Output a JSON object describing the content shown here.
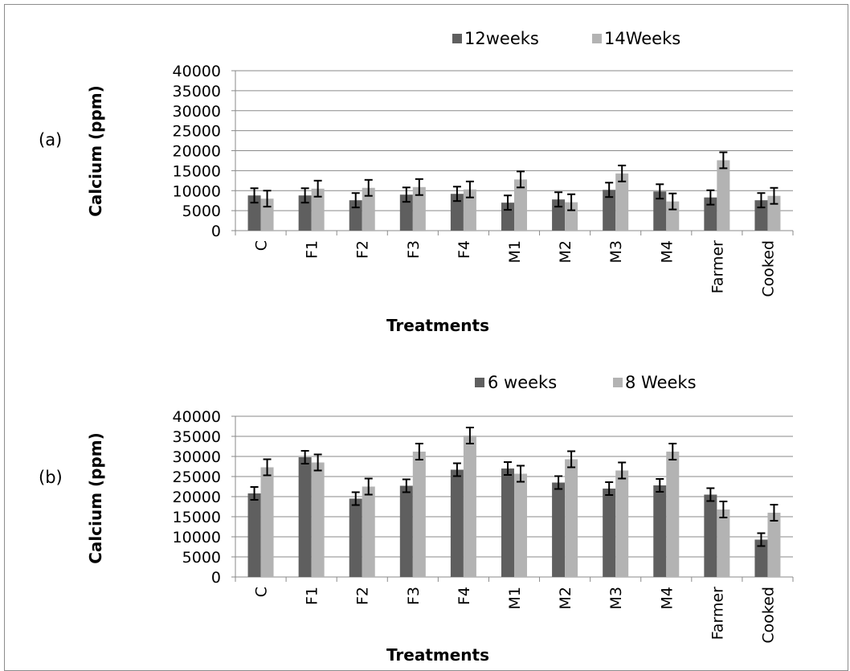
{
  "chart_data": [
    {
      "type": "bar",
      "panel_label": "(a)",
      "categories": [
        "C",
        "F1",
        "F2",
        "F3",
        "F4",
        "M1",
        "M2",
        "M3",
        "M4",
        "Farmer",
        "Cooked"
      ],
      "series": [
        {
          "name": "12weeks",
          "color": "#5f5f5f",
          "values": [
            8800,
            8800,
            7600,
            9000,
            9200,
            7000,
            7800,
            10200,
            9800,
            8300,
            7600
          ],
          "errors": [
            1800,
            1800,
            1800,
            1800,
            1800,
            1800,
            1800,
            1800,
            1800,
            1800,
            1800
          ]
        },
        {
          "name": "14Weeks",
          "color": "#b3b3b3",
          "values": [
            8000,
            10500,
            10700,
            10900,
            10300,
            12800,
            7100,
            14300,
            7300,
            17600,
            8700
          ],
          "errors": [
            2000,
            2000,
            2000,
            2000,
            2000,
            2000,
            2000,
            2000,
            2000,
            2000,
            2000
          ]
        }
      ],
      "xlabel": "Treatments",
      "ylabel": "Calcium (ppm)",
      "ylim": [
        0,
        40000
      ],
      "yticks": [
        "0",
        "5000",
        "10000",
        "15000",
        "20000",
        "25000",
        "30000",
        "35000",
        "40000"
      ],
      "grid": true,
      "legend": "top-right"
    },
    {
      "type": "bar",
      "panel_label": "(b)",
      "categories": [
        "C",
        "F1",
        "F2",
        "F3",
        "F4",
        "M1",
        "M2",
        "M3",
        "M4",
        "Farmer",
        "Cooked"
      ],
      "series": [
        {
          "name": "6 weeks",
          "color": "#5f5f5f",
          "values": [
            20800,
            29800,
            19500,
            22700,
            26700,
            27000,
            23500,
            22000,
            22800,
            20500,
            9300
          ],
          "errors": [
            1600,
            1600,
            1600,
            1600,
            1600,
            1600,
            1600,
            1600,
            1600,
            1600,
            1600
          ]
        },
        {
          "name": "8 Weeks",
          "color": "#b3b3b3",
          "values": [
            27300,
            28500,
            22500,
            31200,
            35200,
            25700,
            29300,
            26500,
            31200,
            16800,
            16000
          ],
          "errors": [
            2000,
            2000,
            2000,
            2000,
            2000,
            2000,
            2000,
            2000,
            2000,
            2000,
            2000
          ]
        }
      ],
      "xlabel": "Treatments",
      "ylabel": "Calcium (ppm)",
      "ylim": [
        0,
        40000
      ],
      "yticks": [
        "0",
        "5000",
        "10000",
        "15000",
        "20000",
        "25000",
        "30000",
        "35000",
        "40000"
      ],
      "grid": true,
      "legend": "top-right"
    }
  ]
}
